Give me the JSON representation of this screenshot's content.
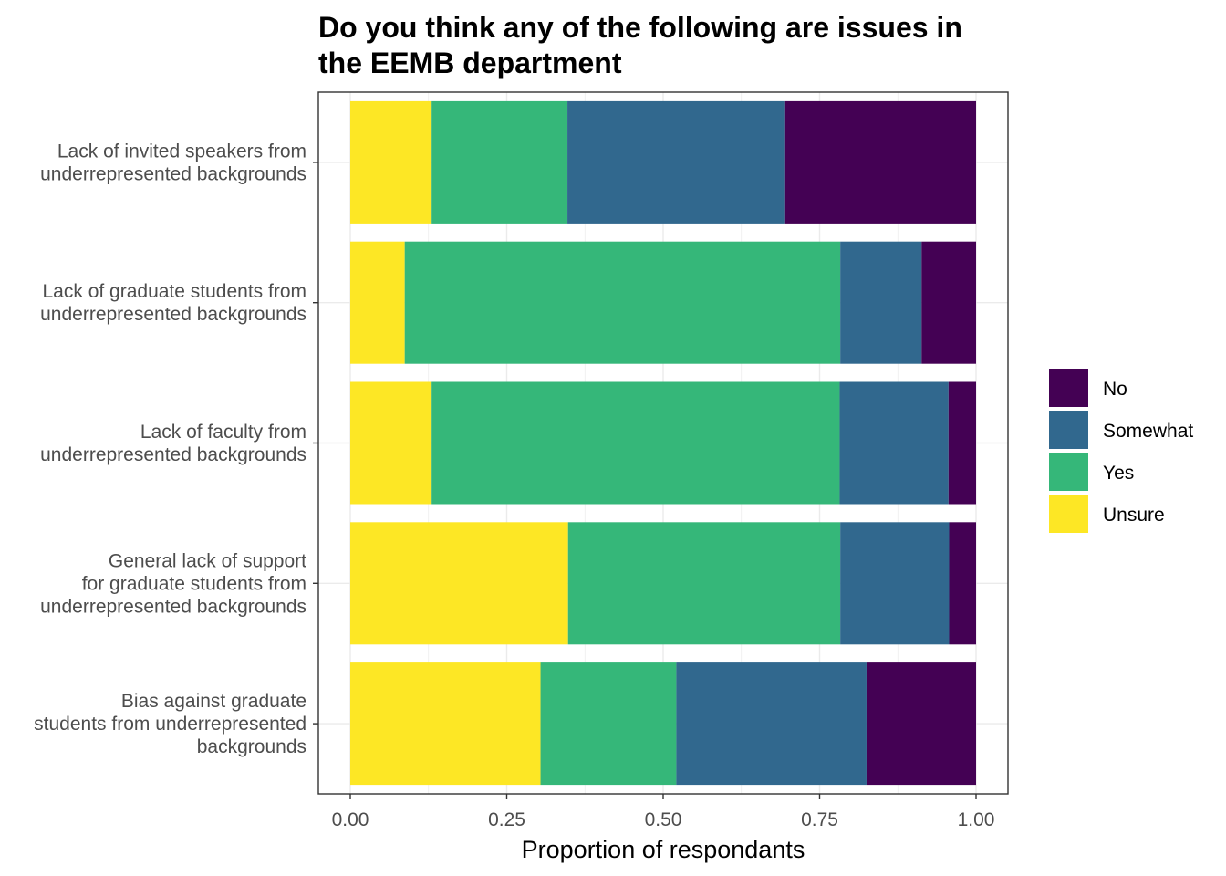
{
  "chart_data": {
    "type": "bar",
    "orientation": "horizontal",
    "stacked": true,
    "title": "Do you think any of the following are issues in the EEMB department",
    "xlabel": "Proportion of respondants",
    "ylabel": "",
    "xlim": [
      0,
      1
    ],
    "x_ticks": [
      "0.00",
      "0.25",
      "0.50",
      "0.75",
      "1.00"
    ],
    "grid": true,
    "legend_position": "right",
    "categories": [
      [
        "Lack of invited speakers from",
        "underrepresented backgrounds"
      ],
      [
        "Lack of graduate students from",
        "underrepresented backgrounds"
      ],
      [
        "Lack of faculty from",
        "underrepresented backgrounds"
      ],
      [
        "General lack of support",
        "for graduate students from",
        "underrepresented backgrounds"
      ],
      [
        "Bias against graduate",
        "students from underrepresented",
        "backgrounds"
      ]
    ],
    "series": [
      {
        "name": "Unsure",
        "color": "#FDE725",
        "values": [
          0.13,
          0.087,
          0.13,
          0.348,
          0.304
        ]
      },
      {
        "name": "Yes",
        "color": "#35B779",
        "values": [
          0.217,
          0.696,
          0.652,
          0.435,
          0.217
        ]
      },
      {
        "name": "Somewhat",
        "color": "#31688E",
        "values": [
          0.348,
          0.13,
          0.174,
          0.174,
          0.304
        ]
      },
      {
        "name": "No",
        "color": "#440154",
        "values": [
          0.305,
          0.087,
          0.044,
          0.043,
          0.175
        ]
      }
    ],
    "legend_order": [
      "No",
      "Somewhat",
      "Yes",
      "Unsure"
    ]
  }
}
